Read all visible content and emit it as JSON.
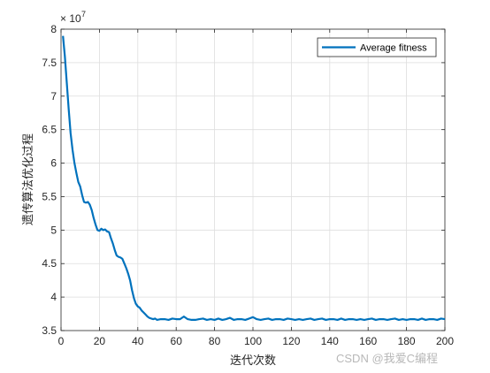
{
  "chart_data": {
    "type": "line",
    "title": "",
    "xlabel": "迭代次数",
    "ylabel": "遗传算法优化过程",
    "exponent_label": "× 10",
    "exponent_power": "7",
    "xlim": [
      0,
      200
    ],
    "ylim": [
      3.5,
      8
    ],
    "xticks": [
      "0",
      "20",
      "40",
      "60",
      "80",
      "100",
      "120",
      "140",
      "160",
      "180",
      "200"
    ],
    "yticks": [
      "3.5",
      "4",
      "4.5",
      "5",
      "5.5",
      "6",
      "6.5",
      "7",
      "7.5",
      "8"
    ],
    "grid": true,
    "legend_position": "top-right",
    "series": [
      {
        "name": "Average fitness",
        "color": "#0072bd",
        "x": [
          1,
          2,
          3,
          4,
          5,
          6,
          7,
          8,
          9,
          10,
          11,
          12,
          13,
          14,
          15,
          16,
          17,
          18,
          19,
          20,
          21,
          22,
          23,
          24,
          25,
          26,
          27,
          28,
          29,
          30,
          31,
          32,
          33,
          34,
          35,
          36,
          37,
          38,
          39,
          40,
          41,
          42,
          43,
          44,
          45,
          46,
          47,
          48,
          49,
          50,
          52,
          54,
          56,
          58,
          60,
          62,
          64,
          66,
          68,
          70,
          72,
          74,
          76,
          78,
          80,
          82,
          84,
          86,
          88,
          90,
          92,
          94,
          96,
          98,
          100,
          102,
          104,
          106,
          108,
          110,
          112,
          114,
          116,
          118,
          120,
          122,
          124,
          126,
          128,
          130,
          132,
          134,
          136,
          138,
          140,
          142,
          144,
          146,
          148,
          150,
          152,
          154,
          156,
          158,
          160,
          162,
          164,
          166,
          168,
          170,
          172,
          174,
          176,
          178,
          180,
          182,
          184,
          186,
          188,
          190,
          192,
          194,
          196,
          198,
          200
        ],
        "values": [
          7.9,
          7.6,
          7.2,
          6.8,
          6.45,
          6.2,
          6.0,
          5.85,
          5.72,
          5.65,
          5.52,
          5.42,
          5.41,
          5.42,
          5.38,
          5.3,
          5.18,
          5.08,
          5.0,
          4.99,
          5.02,
          5.0,
          5.01,
          4.98,
          4.97,
          4.88,
          4.8,
          4.7,
          4.62,
          4.6,
          4.59,
          4.57,
          4.5,
          4.43,
          4.35,
          4.25,
          4.1,
          3.98,
          3.9,
          3.86,
          3.84,
          3.8,
          3.77,
          3.74,
          3.71,
          3.69,
          3.68,
          3.67,
          3.68,
          3.66,
          3.67,
          3.67,
          3.66,
          3.68,
          3.67,
          3.67,
          3.71,
          3.67,
          3.66,
          3.66,
          3.67,
          3.68,
          3.66,
          3.67,
          3.66,
          3.68,
          3.66,
          3.67,
          3.69,
          3.66,
          3.67,
          3.67,
          3.66,
          3.68,
          3.7,
          3.67,
          3.66,
          3.67,
          3.68,
          3.66,
          3.67,
          3.67,
          3.66,
          3.68,
          3.67,
          3.66,
          3.67,
          3.66,
          3.67,
          3.68,
          3.66,
          3.67,
          3.68,
          3.66,
          3.67,
          3.67,
          3.66,
          3.68,
          3.66,
          3.67,
          3.67,
          3.66,
          3.67,
          3.66,
          3.67,
          3.68,
          3.66,
          3.67,
          3.67,
          3.66,
          3.67,
          3.68,
          3.66,
          3.67,
          3.66,
          3.67,
          3.67,
          3.66,
          3.68,
          3.66,
          3.67,
          3.67,
          3.66,
          3.68,
          3.67
        ]
      }
    ]
  },
  "watermark": "CSDN @我爱C编程"
}
